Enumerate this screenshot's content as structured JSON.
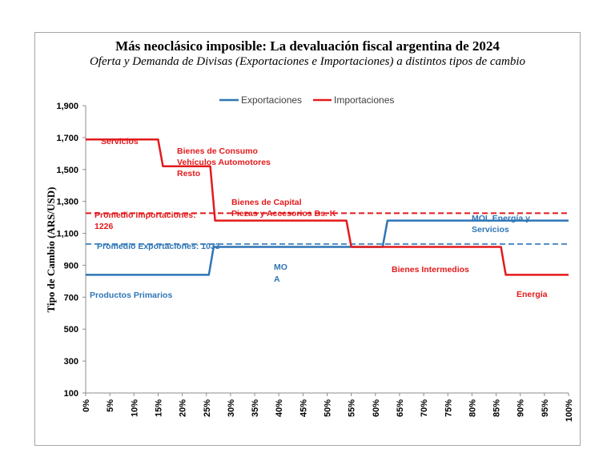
{
  "chart_data": {
    "type": "line",
    "title": "Más neoclásico imposible: La devaluación fiscal argentina de 2024",
    "subtitle": "Oferta y Demanda de Divisas (Exportaciones e Importaciones) a distintos tipos de cambio",
    "ylabel": "Tipo de Cambio (ARS/USD)",
    "xlabel": "",
    "ylim": [
      100,
      1900
    ],
    "xlim": [
      0,
      100
    ],
    "y_ticks": [
      "100",
      "300",
      "500",
      "700",
      "900",
      "1,100",
      "1,300",
      "1,500",
      "1,700",
      "1,900"
    ],
    "y_tick_values": [
      100,
      300,
      500,
      700,
      900,
      1100,
      1300,
      1500,
      1700,
      1900
    ],
    "x_ticks": [
      "0%",
      "5%",
      "10%",
      "15%",
      "20%",
      "25%",
      "30%",
      "35%",
      "40%",
      "45%",
      "50%",
      "55%",
      "60%",
      "65%",
      "70%",
      "75%",
      "80%",
      "85%",
      "90%",
      "95%",
      "100%"
    ],
    "x_tick_values": [
      0,
      5,
      10,
      15,
      20,
      25,
      30,
      35,
      40,
      45,
      50,
      55,
      60,
      65,
      70,
      75,
      80,
      85,
      90,
      95,
      100
    ],
    "legend": [
      "Exportaciones",
      "Importaciones"
    ],
    "legend_position": "top",
    "grid": false,
    "colors": {
      "exportaciones": "#2e75b6",
      "importaciones": "#e31a1c"
    },
    "series": [
      {
        "name": "Exportaciones",
        "x": [
          0,
          25.5,
          26.5,
          61.5,
          62.5,
          100
        ],
        "y": [
          840,
          840,
          1015,
          1015,
          1180,
          1180
        ]
      },
      {
        "name": "Importaciones",
        "x": [
          0,
          15,
          16,
          25.8,
          26.8,
          54,
          55,
          86,
          87,
          100
        ],
        "y": [
          1688,
          1688,
          1520,
          1520,
          1180,
          1180,
          1015,
          1015,
          840,
          840
        ]
      }
    ],
    "averages": [
      {
        "name": "Promedio Importaciones: 1226",
        "value": 1226,
        "color": "#e31a1c"
      },
      {
        "name": "Promedio Exportaciones: 1033",
        "value": 1033,
        "color": "#2e75b6"
      }
    ],
    "annotations": {
      "servicios": "Servicios",
      "consumo": [
        "Bienes de Consumo",
        "Vehículos Automotores",
        "Resto"
      ],
      "capital": [
        "Bienes de Capital",
        "Piezas y Accesorios Bs. K"
      ],
      "prom_import": [
        "Promedio Importaciones:",
        "1226"
      ],
      "prom_export": "Promedio Exportaciones: 1033",
      "moi": [
        "MOI, Energía y",
        "Servicios"
      ],
      "moa": [
        "MO",
        "A"
      ],
      "intermedios": "Bienes Intermedios",
      "primarios": "Productos Primarios",
      "energia": "Energía"
    }
  }
}
